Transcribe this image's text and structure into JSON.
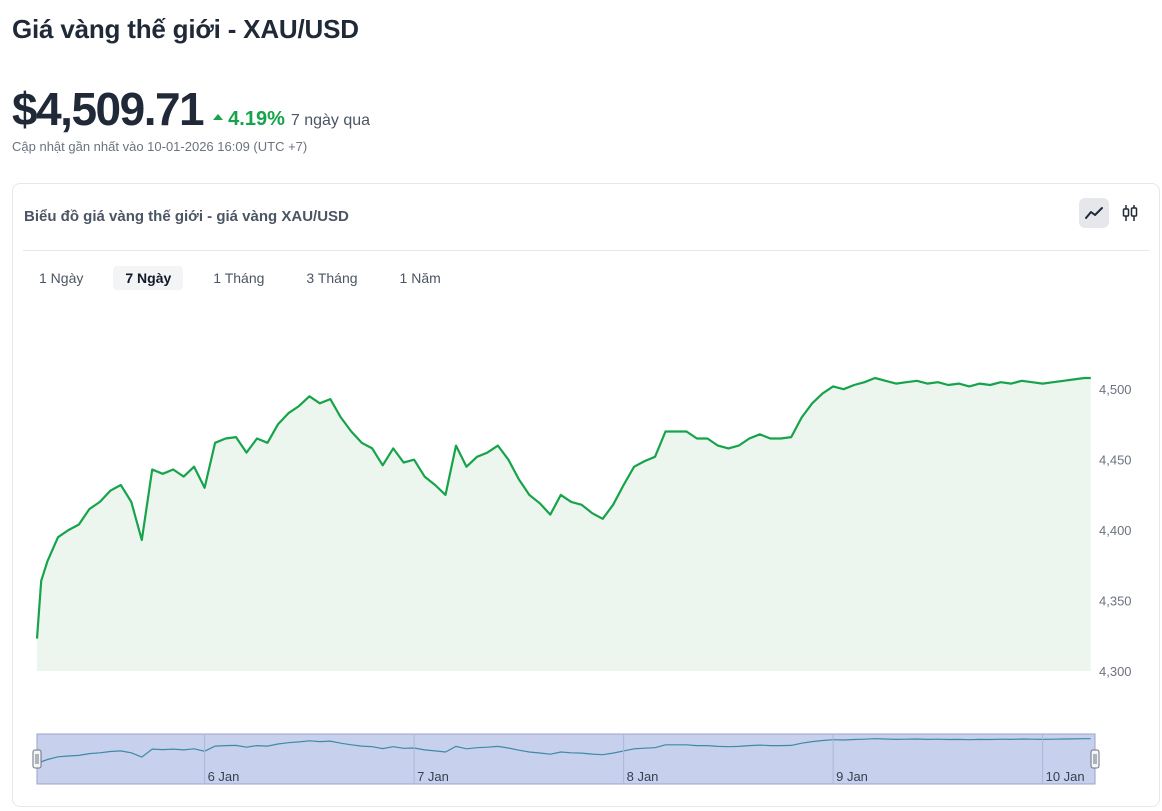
{
  "page": {
    "title": "Giá vàng thế giới - XAU/USD",
    "price": "$4,509.71",
    "change_pct": "4.19%",
    "change_period": "7 ngày qua",
    "updated": "Cập nhật gần nhất vào 10-01-2026 16:09 (UTC +7)"
  },
  "card": {
    "title": "Biểu đồ giá vàng thế giới - giá vàng XAU/USD",
    "view_icons": [
      "line-chart-icon",
      "candlestick-icon"
    ],
    "ranges": [
      {
        "label": "1 Ngày",
        "active": false
      },
      {
        "label": "7 Ngày",
        "active": true
      },
      {
        "label": "1 Tháng",
        "active": false
      },
      {
        "label": "3 Tháng",
        "active": false
      },
      {
        "label": "1 Năm",
        "active": false
      }
    ]
  },
  "colors": {
    "line": "#16a34a",
    "area": "#ecf6ef",
    "up": "#16a34a",
    "navigator_fill": "#c7d0ec",
    "navigator_line": "#3d8ba6"
  },
  "chart_data": {
    "type": "area",
    "y_ticks": [
      4300,
      4350,
      4400,
      4450,
      4500
    ],
    "ylim": [
      4300,
      4525
    ],
    "xlim": [
      0,
      5.05
    ],
    "x_ticks": [
      {
        "label": "6 Jan",
        "x": 0.8
      },
      {
        "label": "7 Jan",
        "x": 1.8
      },
      {
        "label": "8 Jan",
        "x": 2.8
      },
      {
        "label": "9 Jan",
        "x": 3.8
      },
      {
        "label": "10 Jan",
        "x": 4.8
      }
    ],
    "x": [
      0.0,
      0.02,
      0.05,
      0.1,
      0.15,
      0.2,
      0.25,
      0.3,
      0.35,
      0.4,
      0.45,
      0.5,
      0.55,
      0.6,
      0.65,
      0.7,
      0.75,
      0.8,
      0.85,
      0.9,
      0.95,
      1.0,
      1.05,
      1.1,
      1.15,
      1.2,
      1.25,
      1.3,
      1.35,
      1.4,
      1.45,
      1.5,
      1.55,
      1.6,
      1.65,
      1.7,
      1.75,
      1.8,
      1.85,
      1.9,
      1.95,
      2.0,
      2.05,
      2.1,
      2.15,
      2.2,
      2.25,
      2.3,
      2.35,
      2.4,
      2.45,
      2.5,
      2.55,
      2.6,
      2.65,
      2.7,
      2.75,
      2.8,
      2.85,
      2.9,
      2.95,
      3.0,
      3.05,
      3.1,
      3.15,
      3.2,
      3.25,
      3.3,
      3.35,
      3.4,
      3.45,
      3.5,
      3.55,
      3.6,
      3.65,
      3.7,
      3.75,
      3.8,
      3.85,
      3.9,
      3.95,
      4.0,
      4.05,
      4.1,
      4.15,
      4.2,
      4.25,
      4.3,
      4.35,
      4.4,
      4.45,
      4.5,
      4.55,
      4.6,
      4.65,
      4.7,
      4.75,
      4.8,
      4.85,
      4.9,
      4.95,
      5.0,
      5.03
    ],
    "y": [
      4323,
      4364,
      4378,
      4395,
      4400,
      4404,
      4415,
      4420,
      4428,
      4432,
      4420,
      4393,
      4443,
      4440,
      4443,
      4438,
      4445,
      4430,
      4462,
      4465,
      4466,
      4455,
      4465,
      4462,
      4475,
      4483,
      4488,
      4495,
      4490,
      4493,
      4480,
      4470,
      4462,
      4458,
      4446,
      4458,
      4448,
      4450,
      4438,
      4432,
      4425,
      4460,
      4445,
      4452,
      4455,
      4460,
      4450,
      4436,
      4425,
      4419,
      4411,
      4425,
      4420,
      4418,
      4412,
      4408,
      4418,
      4432,
      4445,
      4449,
      4452,
      4470,
      4470,
      4470,
      4465,
      4465,
      4460,
      4458,
      4460,
      4465,
      4468,
      4465,
      4465,
      4466,
      4480,
      4490,
      4497,
      4502,
      4500,
      4503,
      4505,
      4508,
      4506,
      4504,
      4505,
      4506,
      4504,
      4505,
      4503,
      4504,
      4502,
      4504,
      4503,
      4505,
      4504,
      4506,
      4505,
      4504,
      4505,
      4506,
      4507,
      4508,
      4508
    ]
  }
}
